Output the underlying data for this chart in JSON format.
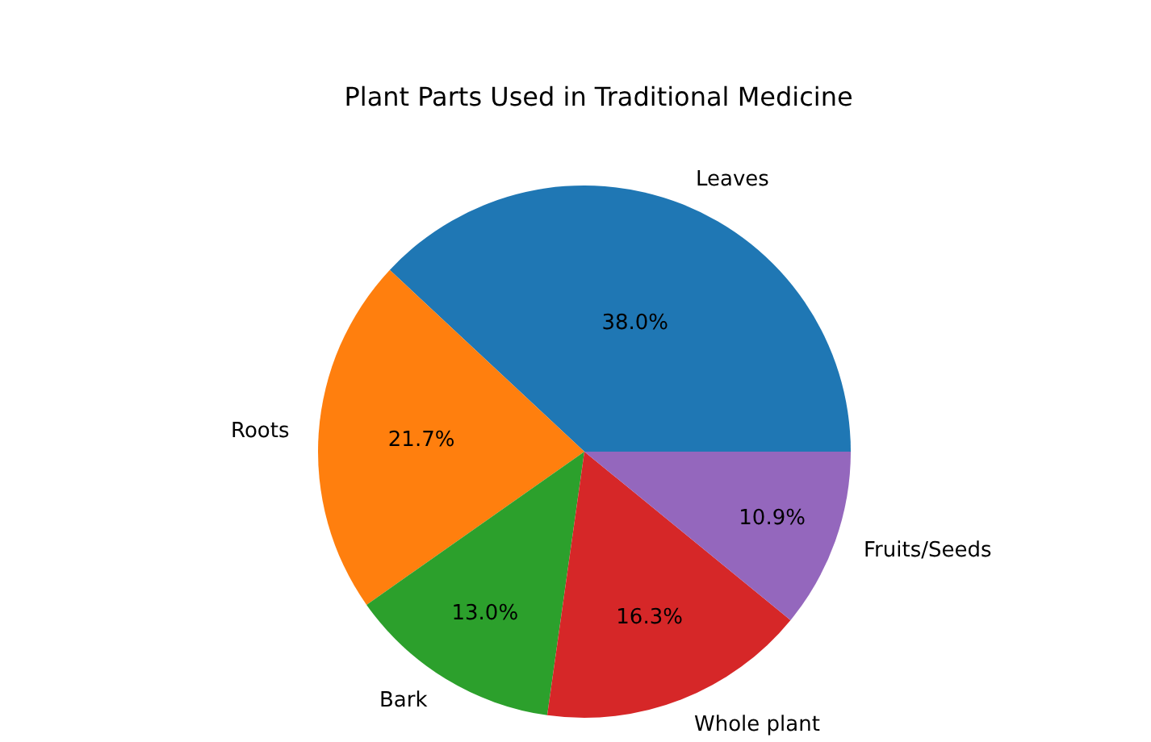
{
  "chart_data": {
    "type": "pie",
    "title": "Plant Parts Used in Traditional Medicine",
    "categories": [
      "Leaves",
      "Roots",
      "Bark",
      "Whole plant",
      "Fruits/Seeds"
    ],
    "values": [
      38.0,
      21.7,
      13.0,
      16.3,
      10.9
    ],
    "value_labels": [
      "38.0%",
      "21.7%",
      "13.0%",
      "16.3%",
      "10.9%"
    ],
    "colors": [
      "#1f77b4",
      "#ff7f0e",
      "#2ca02c",
      "#d62728",
      "#9467bd"
    ],
    "legend": false
  }
}
